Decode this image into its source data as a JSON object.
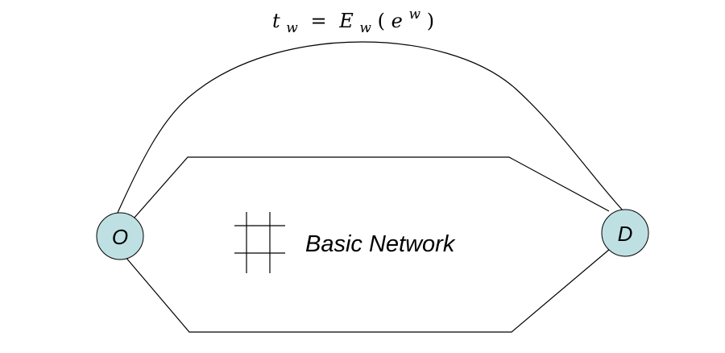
{
  "formula": {
    "t": "t",
    "t_sub": "w",
    "equals": "=",
    "E": "E",
    "E_sub": "w",
    "open_paren": "(",
    "e": "e",
    "e_sup": "w",
    "close_paren": ")"
  },
  "nodes": {
    "origin": {
      "label": "O"
    },
    "destination": {
      "label": "D"
    }
  },
  "network": {
    "label": "Basic Network",
    "icon": "grid-icon"
  },
  "colors": {
    "node_fill": "#bfe0e3",
    "stroke": "#000000"
  }
}
